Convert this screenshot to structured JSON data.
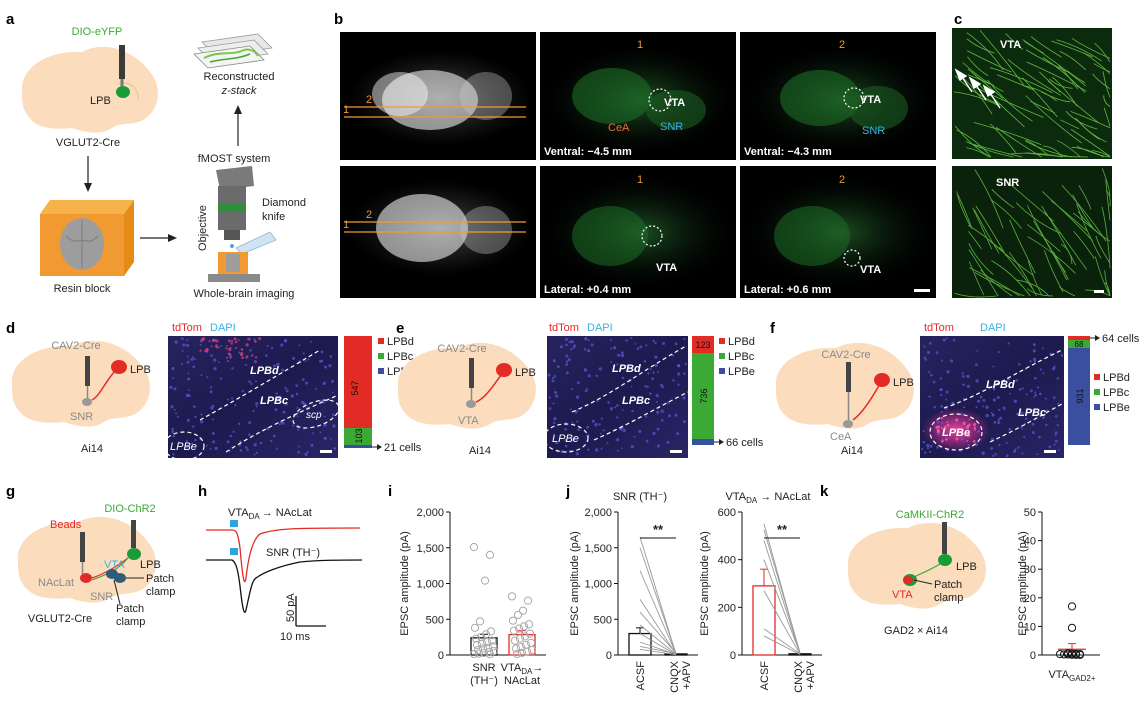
{
  "panel_letters": [
    "a",
    "b",
    "c",
    "d",
    "e",
    "f",
    "g",
    "h",
    "i",
    "j",
    "k"
  ],
  "a": {
    "virus": "DIO-eYFP",
    "site": "LPB",
    "mouse": "VGLUT2-Cre",
    "resin": "Resin block",
    "fmost": "fMOST system",
    "recon1": "Reconstructed",
    "recon2": "z-stack",
    "objective": "Objective",
    "knife1": "Diamond",
    "knife2": "knife",
    "imaging": "Whole-brain imaging"
  },
  "b": {
    "line1": "1",
    "line2": "2",
    "vta": "VTA",
    "snr": "SNR",
    "cea": "CeA",
    "sec1": "Ventral: −4.5 mm",
    "sec2": "Ventral: −4.3 mm",
    "sec3": "Lateral: +0.4 mm",
    "sec4": "Lateral: +0.6 mm"
  },
  "c": {
    "top": "VTA",
    "bottom": "SNR"
  },
  "d": {
    "virus": "CAV2-Cre",
    "target": "SNR",
    "site": "LPB",
    "mouse": "Ai14",
    "tdtom": "tdTom",
    "dapi": "DAPI",
    "lpbd": "LPBd",
    "lpbc": "LPBc",
    "lpbe": "LPBe",
    "scp": "scp",
    "stack": [
      547,
      103
    ],
    "cells": "21 cells"
  },
  "e": {
    "virus": "CAV2-Cre",
    "target": "VTA",
    "site": "LPB",
    "mouse": "Ai14",
    "tdtom": "tdTom",
    "dapi": "DAPI",
    "lpbd": "LPBd",
    "lpbc": "LPBc",
    "lpbe": "LPBe",
    "stack": [
      123,
      736
    ],
    "cells": "66 cells"
  },
  "f": {
    "virus": "CAV2-Cre",
    "target": "CeA",
    "site": "LPB",
    "mouse": "Ai14",
    "tdtom": "tdTom",
    "dapi": "DAPI",
    "lpbd": "LPBd",
    "lpbc": "LPBc",
    "lpbe": "LPBe",
    "stack": [
      68,
      931
    ],
    "cells": "64 cells"
  },
  "legend": {
    "lpbd": "LPBd",
    "lpbc": "LPBc",
    "lpbe": "LPBe"
  },
  "colors": {
    "red": "#e32b26",
    "green": "#3aaa35",
    "blue": "#3a4fa0",
    "brain": "#fbdcbc",
    "orange": "#f29a32"
  },
  "g": {
    "virus": "DIO-ChR2",
    "beads": "Beads",
    "vta": "VTA",
    "lpb": "LPB",
    "naclat": "NAcLat",
    "snr": "SNR",
    "patch": "Patch",
    "clamp": "clamp",
    "mouse": "VGLUT2-Cre"
  },
  "h": {
    "trace1_main": "VTA",
    "trace1_sub": "DA",
    "trace1_rest": "→ NAcLat",
    "trace2": "SNR (TH⁻)",
    "scale_y": "50 pA",
    "scale_x": "10 ms"
  },
  "k": {
    "virus": "CaMKII-ChR2",
    "lpb": "LPB",
    "vta": "VTA",
    "patch": "Patch",
    "clamp": "clamp",
    "mouse": "GAD2 × Ai14"
  },
  "chart_data": [
    {
      "panel": "i",
      "type": "bar",
      "categories": [
        "SNR (TH⁻)",
        "VTA₂ₐ→ NAcLat"
      ],
      "category_lines": [
        [
          "SNR",
          "(TH⁻)"
        ],
        [
          "VTA",
          "NAcLat"
        ]
      ],
      "values": [
        240,
        285
      ],
      "errors": [
        50,
        55
      ],
      "ylabel": "EPSC amplitude (pA)",
      "ylim": [
        0,
        2000
      ],
      "yticks": [
        "0",
        "500",
        "1,000",
        "1,500",
        "2,000"
      ],
      "points": [
        [
          1510,
          1400,
          1040,
          470,
          380,
          330,
          290,
          250,
          230,
          200,
          180,
          160,
          140,
          120,
          100,
          90,
          70,
          55,
          40,
          30,
          20,
          15,
          10
        ],
        [
          820,
          760,
          620,
          560,
          480,
          430,
          400,
          370,
          340,
          300,
          260,
          230,
          200,
          170,
          140,
          110,
          90,
          70,
          50,
          30,
          15
        ]
      ]
    },
    {
      "panel": "j-left",
      "type": "bar",
      "title": "SNR (TH⁻)",
      "categories": [
        "ACSF",
        "CNQX +APV"
      ],
      "values": [
        300,
        15
      ],
      "errors": [
        80,
        5
      ],
      "ylabel": "EPSC amplitude (pA)",
      "ylim": [
        0,
        2000
      ],
      "yticks": [
        "0",
        "500",
        "1,000",
        "1,500",
        "2,000"
      ],
      "significance": "**",
      "pairs": [
        [
          1650,
          10
        ],
        [
          1500,
          20
        ],
        [
          1180,
          15
        ],
        [
          780,
          10
        ],
        [
          600,
          25
        ],
        [
          420,
          10
        ],
        [
          300,
          5
        ],
        [
          180,
          10
        ],
        [
          120,
          20
        ],
        [
          80,
          5
        ]
      ]
    },
    {
      "panel": "j-right",
      "type": "bar",
      "title": "VTA₂ₐ → NAcLat",
      "categories": [
        "ACSF",
        "CNQX +APV"
      ],
      "values": [
        290,
        5
      ],
      "errors": [
        70,
        3
      ],
      "ylabel": "EPSC amplitude (pA)",
      "ylim": [
        0,
        600
      ],
      "yticks": [
        "0",
        "200",
        "400",
        "600"
      ],
      "significance": "**",
      "pairs": [
        [
          550,
          5
        ],
        [
          525,
          10
        ],
        [
          480,
          5
        ],
        [
          400,
          8
        ],
        [
          270,
          3
        ],
        [
          110,
          5
        ],
        [
          80,
          2
        ]
      ]
    },
    {
      "panel": "k",
      "type": "scatter",
      "categories": [
        "VTA GAD2+"
      ],
      "values": [
        2
      ],
      "errors": [
        2
      ],
      "ylabel": "EPSC amplitude (pA)",
      "ylim": [
        0,
        50
      ],
      "yticks": [
        "0",
        "10",
        "20",
        "30",
        "40",
        "50"
      ],
      "points": [
        17,
        9.5,
        0.6,
        0.5,
        0.4,
        0.3,
        0.3,
        0.2,
        0.2,
        0.1,
        0.1,
        0.05
      ]
    }
  ]
}
